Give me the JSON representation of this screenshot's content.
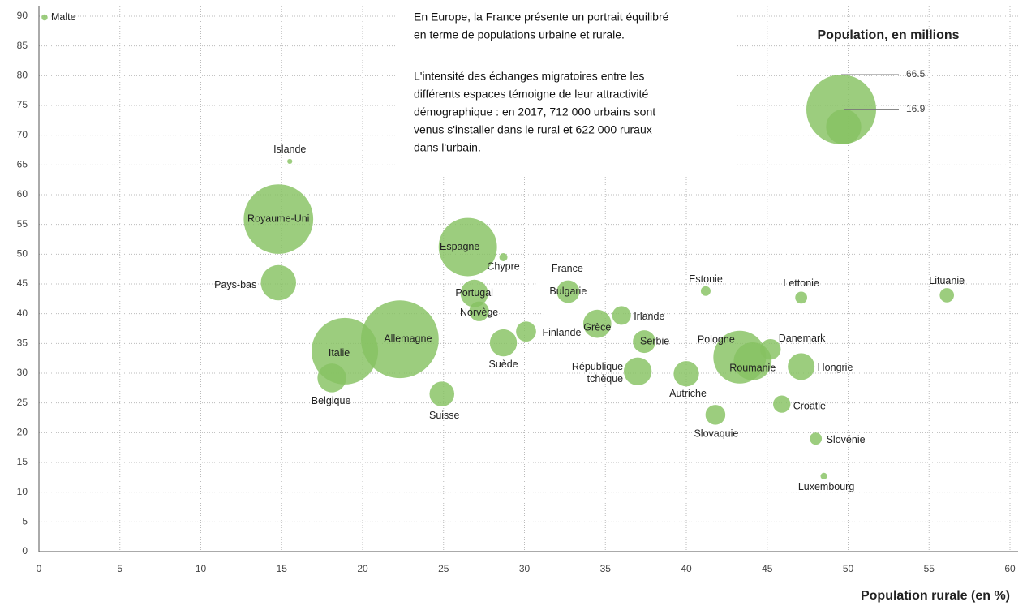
{
  "chart_data": {
    "type": "bubble",
    "xlabel": "Population rurale (en %)",
    "size_legend_title": "Population, en millions",
    "size_legend": [
      66.5,
      16.9
    ],
    "annotation": [
      "En Europe, la France présente un portrait équilibré",
      "en terme de populations urbaine et rurale.",
      "L'intensité des échanges migratoires entre les",
      "différents espaces témoigne de leur attractivité",
      "démographique : en 2017, 712 000 urbains sont",
      "venus s'installer dans le rural et 622 000 ruraux",
      "dans l'urbain."
    ],
    "xlim": [
      0,
      60
    ],
    "xticks": [
      0,
      5,
      10,
      15,
      20,
      25,
      30,
      35,
      40,
      45,
      50,
      55,
      60
    ],
    "ylim": [
      0,
      90
    ],
    "yticks": [
      0,
      5,
      10,
      15,
      20,
      25,
      30,
      35,
      40,
      45,
      50,
      55,
      60,
      65,
      70,
      75,
      80,
      85,
      90
    ],
    "grid": true,
    "color": "#86c262",
    "points": [
      {
        "name": "Malte",
        "x": 0.35,
        "y": 89.8,
        "size": 0.5
      },
      {
        "name": "Islande",
        "x": 15.5,
        "y": 65.6,
        "size": 0.35
      },
      {
        "name": "Royaume-Uni",
        "x": 14.8,
        "y": 55.9,
        "size": 66
      },
      {
        "name": "Pays-bas",
        "x": 14.8,
        "y": 45.2,
        "size": 17
      },
      {
        "name": "Espagne",
        "x": 26.5,
        "y": 51.2,
        "size": 46.5
      },
      {
        "name": "Chypre",
        "x": 28.7,
        "y": 49.5,
        "size": 0.9
      },
      {
        "name": "France",
        "x": 32.8,
        "y": 43.7,
        "size": 66.9,
        "color": "#ffffff"
      },
      {
        "name": "Bulgarie",
        "x": 32.7,
        "y": 43.7,
        "size": 7
      },
      {
        "name": "Portugal",
        "x": 26.9,
        "y": 43.4,
        "size": 10.3
      },
      {
        "name": "Norvège",
        "x": 27.2,
        "y": 40.4,
        "size": 5.3
      },
      {
        "name": "Finlande",
        "x": 30.1,
        "y": 37,
        "size": 5.5
      },
      {
        "name": "Suède",
        "x": 28.7,
        "y": 35.1,
        "size": 10
      },
      {
        "name": "Allemagne",
        "x": 22.3,
        "y": 35.7,
        "size": 82.5
      },
      {
        "name": "Italie",
        "x": 18.9,
        "y": 33.7,
        "size": 60.5
      },
      {
        "name": "Belgique",
        "x": 18.1,
        "y": 29.2,
        "size": 11.3
      },
      {
        "name": "Suisse",
        "x": 24.9,
        "y": 26.5,
        "size": 8.4
      },
      {
        "name": "Grèce",
        "x": 34.5,
        "y": 38.3,
        "size": 10.8
      },
      {
        "name": "Irlande",
        "x": 36,
        "y": 39.7,
        "size": 4.8
      },
      {
        "name": "Serbie",
        "x": 37.4,
        "y": 35.3,
        "size": 7
      },
      {
        "name": "République tchèque",
        "x": 37,
        "y": 30.3,
        "size": 10.6
      },
      {
        "name": "Autriche",
        "x": 40,
        "y": 29.9,
        "size": 8.8
      },
      {
        "name": "Estonie",
        "x": 41.2,
        "y": 43.8,
        "size": 1.3
      },
      {
        "name": "Slovaquie",
        "x": 41.8,
        "y": 23,
        "size": 5.4
      },
      {
        "name": "Pologne",
        "x": 43.3,
        "y": 32.7,
        "size": 38
      },
      {
        "name": "Roumanie",
        "x": 44.1,
        "y": 32,
        "size": 19.6
      },
      {
        "name": "Danemark",
        "x": 45.2,
        "y": 34,
        "size": 5.8
      },
      {
        "name": "Hongrie",
        "x": 47.1,
        "y": 31.1,
        "size": 9.8
      },
      {
        "name": "Croatie",
        "x": 45.9,
        "y": 24.8,
        "size": 4.1
      },
      {
        "name": "Slovénie",
        "x": 48,
        "y": 19,
        "size": 2
      },
      {
        "name": "Luxembourg",
        "x": 48.5,
        "y": 12.7,
        "size": 0.6
      },
      {
        "name": "Lettonie",
        "x": 47.1,
        "y": 42.7,
        "size": 1.95
      },
      {
        "name": "Lituanie",
        "x": 56.1,
        "y": 43.1,
        "size": 2.8
      }
    ]
  }
}
